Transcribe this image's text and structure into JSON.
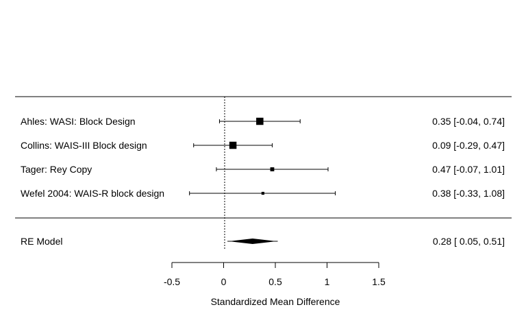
{
  "chart_data": {
    "type": "forest",
    "xlabel": "Standardized Mean Difference",
    "xlim": [
      -0.5,
      1.5
    ],
    "ticks": [
      {
        "value": -0.5,
        "label": "-0.5"
      },
      {
        "value": 0,
        "label": "0"
      },
      {
        "value": 0.5,
        "label": "0.5"
      },
      {
        "value": 1,
        "label": "1"
      },
      {
        "value": 1.5,
        "label": "1.5"
      }
    ],
    "reference_line": 0,
    "studies": [
      {
        "label": "Ahles: WASI: Block Design",
        "estimate": 0.35,
        "lower": -0.04,
        "upper": 0.74,
        "ci_text": "0.35 [-0.04, 0.74]",
        "weight": 1.0
      },
      {
        "label": "Collins: WAIS-III Block design",
        "estimate": 0.09,
        "lower": -0.29,
        "upper": 0.47,
        "ci_text": "0.09 [-0.29, 0.47]",
        "weight": 1.0
      },
      {
        "label": "Tager: Rey Copy",
        "estimate": 0.47,
        "lower": -0.07,
        "upper": 1.01,
        "ci_text": "0.47 [-0.07, 1.01]",
        "weight": 0.55
      },
      {
        "label": "Wefel 2004: WAIS-R block design",
        "estimate": 0.38,
        "lower": -0.33,
        "upper": 1.08,
        "ci_text": "0.38 [-0.33, 1.08]",
        "weight": 0.4
      }
    ],
    "summary": {
      "label": "RE Model",
      "estimate": 0.28,
      "lower": 0.05,
      "upper": 0.51,
      "ci_text": "0.28 [ 0.05, 0.51]"
    }
  }
}
